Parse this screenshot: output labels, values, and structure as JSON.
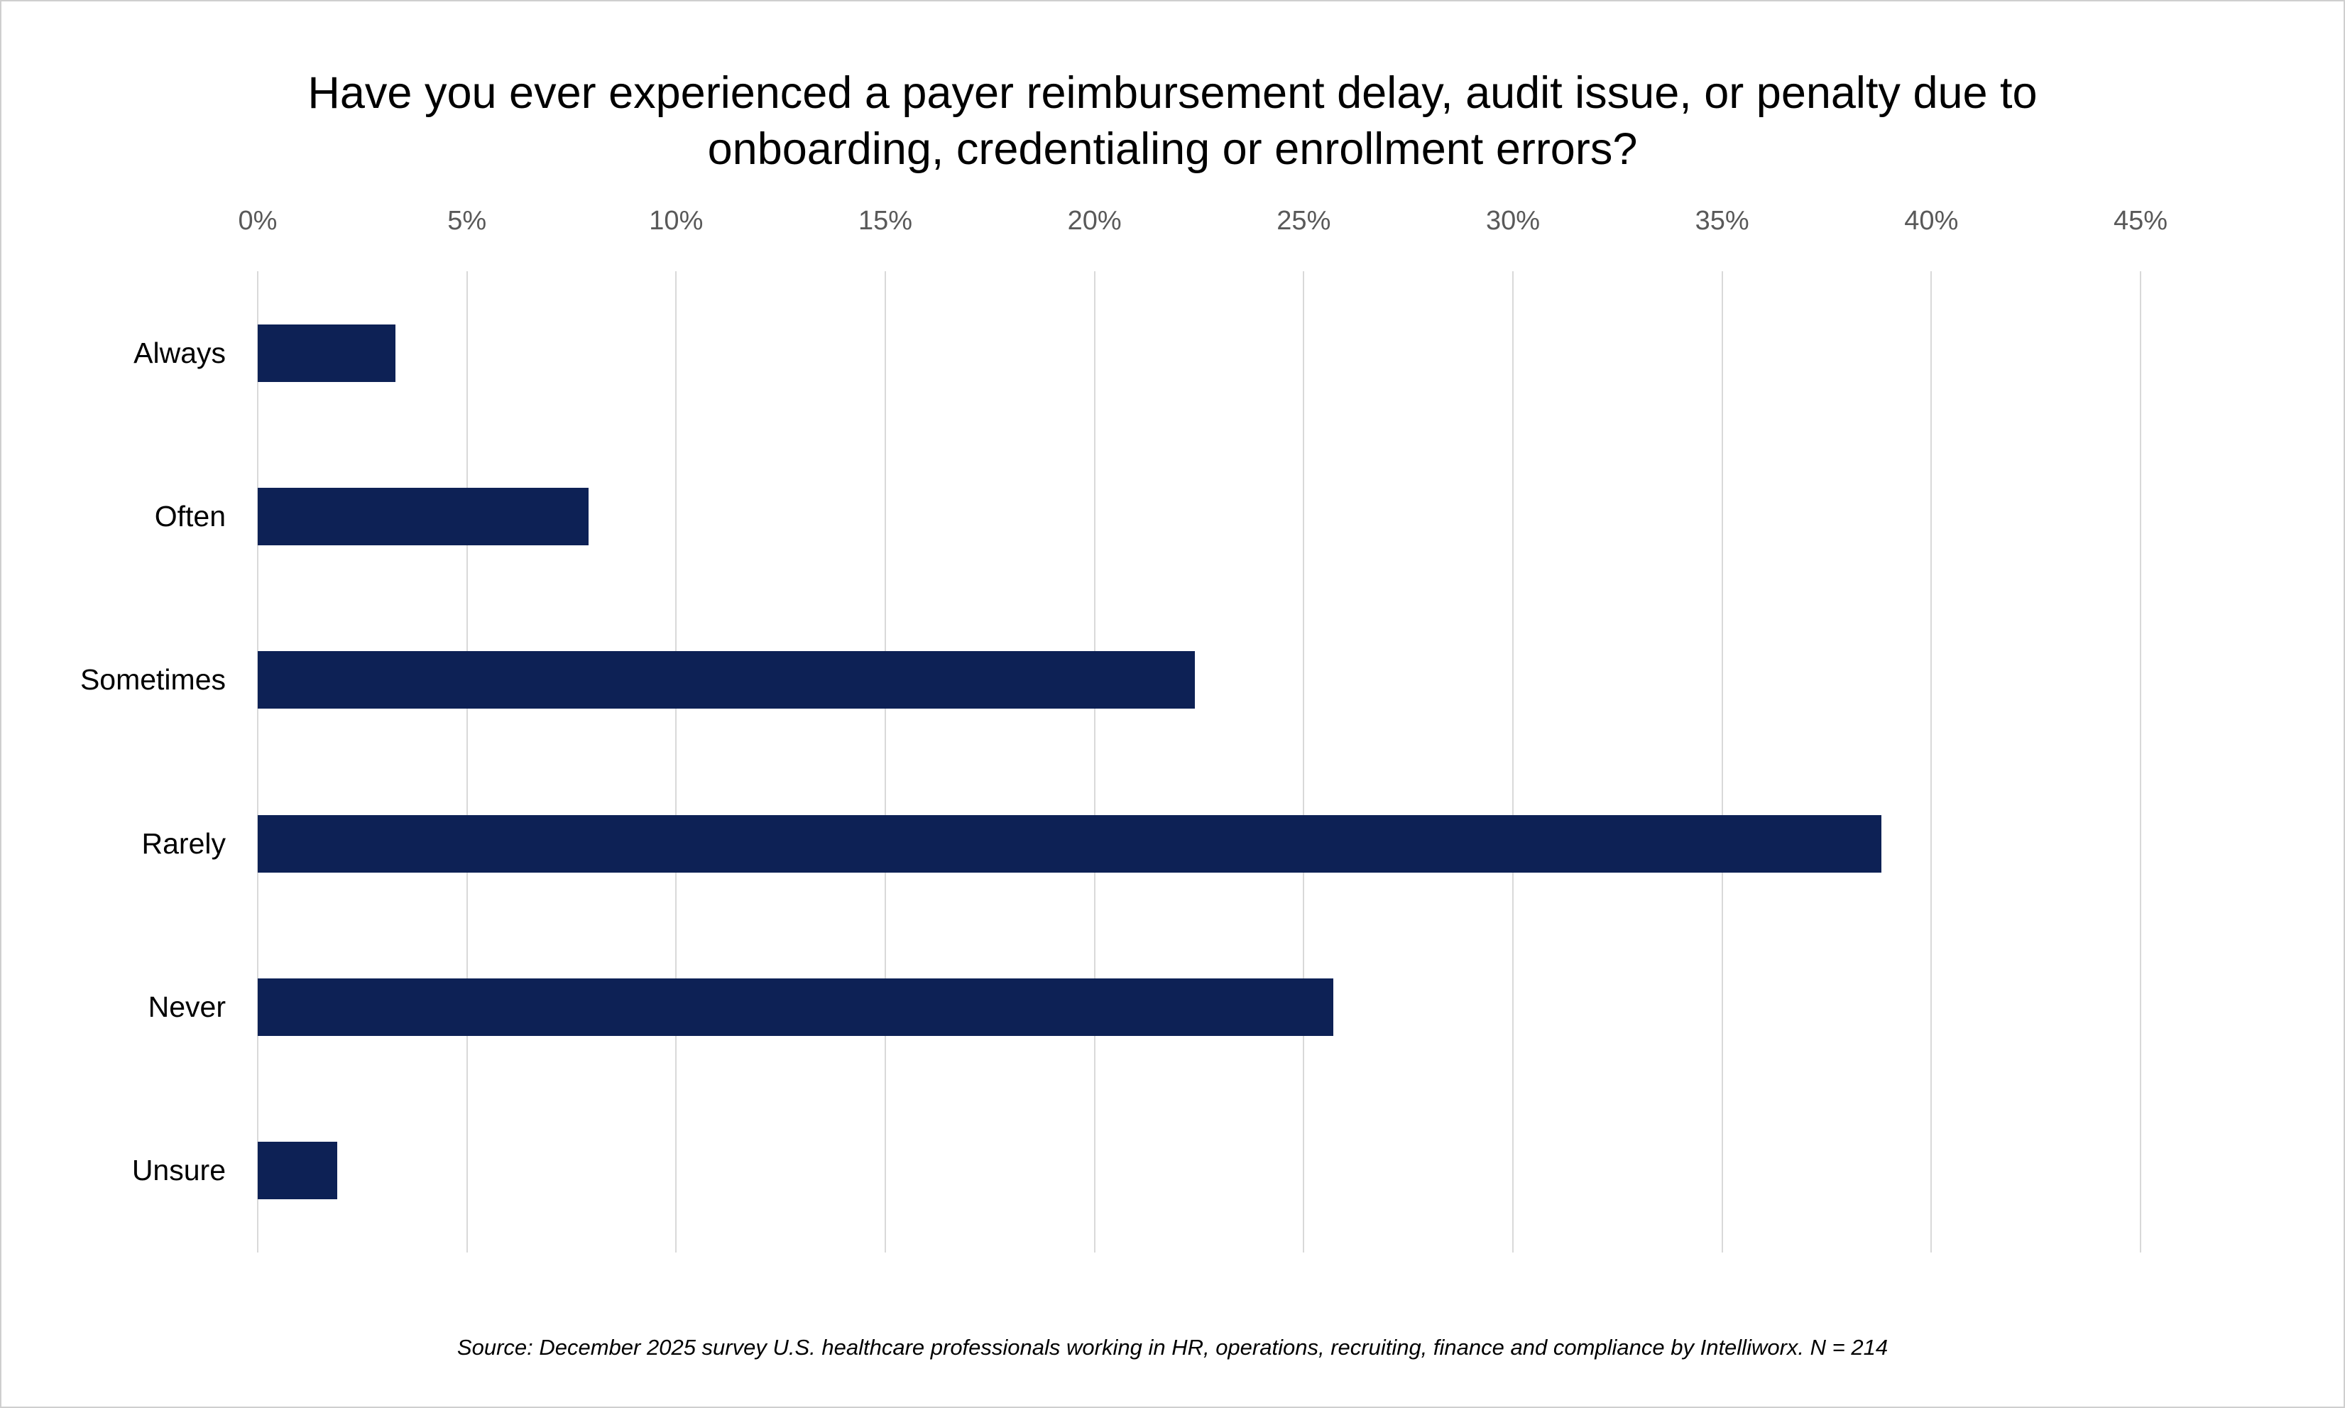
{
  "chart_data": {
    "type": "bar",
    "orientation": "horizontal",
    "title": "Have you ever experienced a payer reimbursement delay, audit issue, or penalty due to onboarding, credentialing or enrollment errors?",
    "categories": [
      "Always",
      "Often",
      "Sometimes",
      "Rarely",
      "Never",
      "Unsure"
    ],
    "values": [
      3.3,
      7.9,
      22.4,
      38.8,
      25.7,
      1.9
    ],
    "xlabel": "",
    "ylabel": "",
    "xlim": [
      0,
      45
    ],
    "x_ticks": [
      {
        "value": 0,
        "label": "0%"
      },
      {
        "value": 5,
        "label": "5%"
      },
      {
        "value": 10,
        "label": "10%"
      },
      {
        "value": 15,
        "label": "15%"
      },
      {
        "value": 20,
        "label": "20%"
      },
      {
        "value": 25,
        "label": "25%"
      },
      {
        "value": 30,
        "label": "30%"
      },
      {
        "value": 35,
        "label": "35%"
      },
      {
        "value": 40,
        "label": "40%"
      },
      {
        "value": 45,
        "label": "45%"
      }
    ],
    "grid": true,
    "legend": false,
    "bar_color": "#0d2155",
    "gridline_color": "#d9d9d9",
    "tick_label_color": "#595959",
    "source": "Source: December 2025 survey U.S. healthcare professionals working in HR, operations, recruiting, finance and compliance by Intelliworx. N = 214"
  }
}
